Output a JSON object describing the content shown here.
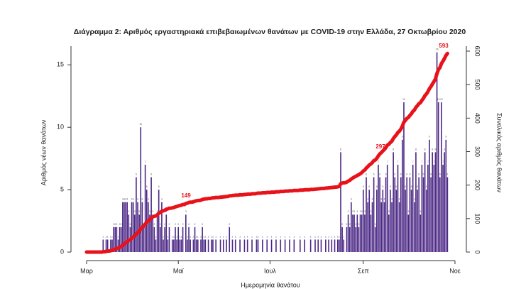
{
  "chart_data": {
    "type": "bar",
    "title": "Διάγραμμα 2: Αριθμός εργαστηριακά επιβεβαιωμένων θανάτων με COVID-19 στην Ελλάδα, 27 Οκτωβρίου 2020",
    "x_label": "Ημερομηνία θανάτου",
    "y_label": "Αριθμός νέων θανάτων",
    "y2_label": "Συνολικός αριθμός θανάτων",
    "categories": [
      "Μαρ",
      null,
      null,
      null,
      null,
      null,
      null,
      null,
      null,
      null,
      null,
      null,
      null,
      null,
      null,
      null,
      null,
      null,
      null,
      null,
      null,
      null,
      null,
      null,
      null,
      null,
      null,
      null,
      null,
      null,
      null,
      null,
      null,
      null,
      null,
      null,
      null,
      null,
      null,
      null,
      null,
      null,
      null,
      null,
      null,
      null,
      null,
      null,
      null,
      null,
      null,
      null,
      null,
      null,
      null,
      null,
      null,
      null,
      null,
      null,
      null,
      "Μαϊ",
      null,
      null,
      null,
      null,
      null,
      null,
      null,
      null,
      null,
      null,
      null,
      null,
      null,
      null,
      null,
      null,
      null,
      null,
      null,
      null,
      null,
      null,
      null,
      null,
      null,
      null,
      null,
      null,
      null,
      null,
      null,
      null,
      null,
      null,
      null,
      null,
      null,
      null,
      null,
      null,
      null,
      null,
      null,
      null,
      null,
      null,
      null,
      null,
      null,
      null,
      null,
      null,
      null,
      null,
      null,
      null,
      null,
      null,
      null,
      null,
      "Ιουλ",
      null,
      null,
      null,
      null,
      null,
      null,
      null,
      null,
      null,
      null,
      null,
      null,
      null,
      null,
      null,
      null,
      null,
      null,
      null,
      null,
      null,
      null,
      null,
      null,
      null,
      null,
      null,
      null,
      null,
      null,
      null,
      null,
      null,
      null,
      null,
      null,
      null,
      null,
      null,
      null,
      null,
      null,
      null,
      null,
      null,
      null,
      null,
      null,
      null,
      null,
      null,
      null,
      null,
      null,
      null,
      null,
      null,
      null,
      null,
      null,
      null,
      "Σεπ",
      null,
      null,
      null,
      null,
      null,
      null,
      null,
      null,
      null,
      null,
      null,
      null,
      null,
      null,
      null,
      null,
      null,
      null,
      null,
      null,
      null,
      null,
      null,
      null,
      null,
      null,
      null,
      null,
      null,
      null,
      null,
      null,
      null,
      null,
      null,
      null,
      null,
      null,
      null,
      null,
      null,
      null,
      null,
      null,
      null,
      null,
      null,
      null,
      null,
      null,
      null,
      null,
      null,
      null,
      null,
      null,
      null,
      null,
      null,
      null,
      "Νοε"
    ],
    "series": [
      {
        "type": "bar",
        "color": "#4b2785",
        "values": [
          0,
          0,
          0,
          0,
          0,
          0,
          0,
          0,
          0,
          0,
          0,
          1,
          0,
          1,
          1,
          0,
          1,
          1,
          2,
          2,
          2,
          1,
          2,
          2,
          4,
          4,
          4,
          4,
          3,
          2,
          4,
          4,
          3,
          6,
          4,
          3,
          10,
          4,
          2,
          7,
          5,
          4,
          3,
          6,
          3,
          2,
          1,
          3,
          5,
          2,
          4,
          1,
          2,
          3,
          1,
          2,
          0,
          1,
          1,
          2,
          1,
          2,
          1,
          1,
          2,
          0,
          3,
          1,
          2,
          1,
          0,
          1,
          2,
          1,
          1,
          0,
          1,
          2,
          1,
          1,
          0,
          1,
          0,
          1,
          1,
          0,
          1,
          0,
          0,
          1,
          0,
          1,
          0,
          1,
          0,
          2,
          0,
          1,
          0,
          1,
          0,
          0,
          1,
          0,
          0,
          1,
          0,
          1,
          0,
          0,
          1,
          0,
          0,
          1,
          1,
          0,
          0,
          1,
          0,
          0,
          1,
          0,
          0,
          1,
          0,
          0,
          1,
          0,
          0,
          1,
          0,
          0,
          1,
          0,
          0,
          1,
          0,
          0,
          1,
          0,
          0,
          0,
          1,
          0,
          0,
          1,
          0,
          0,
          0,
          1,
          0,
          0,
          1,
          0,
          1,
          0,
          1,
          0,
          0,
          1,
          0,
          1,
          0,
          1,
          0,
          1,
          0,
          1,
          1,
          8,
          2,
          1,
          0,
          2,
          3,
          2,
          4,
          3,
          3,
          2,
          3,
          2,
          3,
          3,
          5,
          3,
          6,
          4,
          5,
          3,
          4,
          6,
          2,
          5,
          7,
          6,
          4,
          5,
          4,
          6,
          7,
          3,
          5,
          4,
          8,
          6,
          5,
          7,
          4,
          6,
          9,
          12,
          5,
          6,
          3,
          6,
          5,
          7,
          4,
          8,
          5,
          6,
          3,
          7,
          6,
          8,
          5,
          7,
          9,
          6,
          8,
          7,
          8,
          16,
          12,
          6,
          12,
          7,
          8,
          9,
          6,
          null,
          null,
          null,
          null,
          null
        ]
      },
      {
        "type": "line",
        "axis": "y2",
        "color": "#e8121a",
        "values": [
          0,
          0,
          0,
          0,
          0,
          0,
          0,
          0,
          0,
          0,
          0,
          1,
          1,
          2,
          3,
          3,
          4,
          5,
          7,
          9,
          11,
          12,
          14,
          16,
          20,
          24,
          28,
          32,
          35,
          37,
          41,
          45,
          48,
          54,
          58,
          61,
          71,
          75,
          77,
          84,
          89,
          93,
          96,
          102,
          105,
          107,
          108,
          111,
          116,
          118,
          122,
          123,
          125,
          128,
          129,
          131,
          131,
          132,
          133,
          135,
          136,
          138,
          139,
          140,
          142,
          142,
          145,
          146,
          148,
          149,
          149,
          150,
          152,
          153,
          154,
          154,
          155,
          157,
          158,
          159,
          159,
          160,
          160,
          161,
          162,
          162,
          163,
          163,
          163,
          164,
          164,
          165,
          165,
          166,
          166,
          168,
          168,
          169,
          169,
          170,
          170,
          170,
          171,
          171,
          171,
          172,
          172,
          173,
          173,
          173,
          174,
          174,
          174,
          175,
          176,
          176,
          176,
          177,
          177,
          177,
          178,
          178,
          178,
          179,
          179,
          179,
          180,
          180,
          180,
          181,
          181,
          181,
          182,
          182,
          182,
          183,
          183,
          183,
          184,
          184,
          184,
          184,
          185,
          185,
          185,
          186,
          186,
          186,
          186,
          187,
          187,
          187,
          188,
          188,
          189,
          189,
          190,
          190,
          190,
          191,
          191,
          192,
          192,
          193,
          193,
          194,
          194,
          195,
          196,
          204,
          206,
          207,
          207,
          209,
          212,
          214,
          218,
          221,
          224,
          226,
          229,
          231,
          234,
          237,
          242,
          245,
          251,
          255,
          260,
          263,
          267,
          273,
          275,
          280,
          287,
          293,
          297,
          302,
          306,
          312,
          319,
          322,
          327,
          331,
          339,
          345,
          350,
          357,
          361,
          367,
          376,
          388,
          393,
          399,
          402,
          408,
          413,
          420,
          424,
          432,
          437,
          443,
          446,
          453,
          459,
          467,
          472,
          479,
          488,
          494,
          502,
          509,
          517,
          533,
          545,
          551,
          563,
          570,
          578,
          587,
          593,
          null,
          null,
          null,
          null,
          null
        ]
      }
    ],
    "ylim": [
      0,
      16.1
    ],
    "yticks": [
      0,
      5,
      10,
      15
    ],
    "y2lim": [
      0,
      600
    ],
    "y2ticks": [
      0,
      100,
      200,
      300,
      400,
      500,
      600
    ]
  }
}
